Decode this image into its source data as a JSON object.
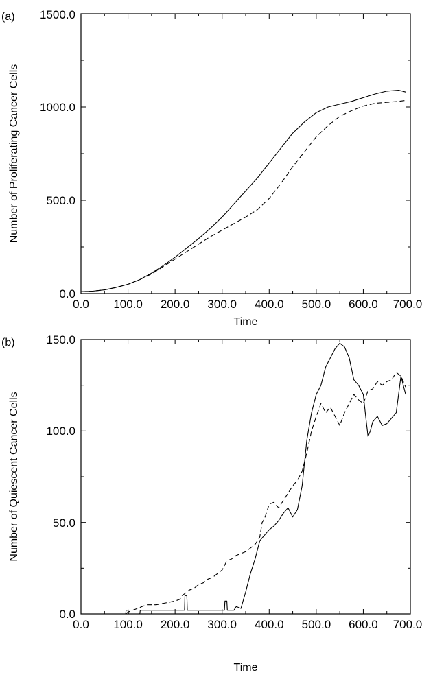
{
  "chart_data": [
    {
      "type": "line",
      "panel_label": "(a)",
      "title": "",
      "xlabel": "Time",
      "ylabel": "Number of Proliferating Cancer Cells",
      "xlim": [
        0,
        700
      ],
      "ylim": [
        0,
        1500
      ],
      "xticks": [
        "0.0",
        "100.0",
        "200.0",
        "300.0",
        "400.0",
        "500.0",
        "600.0",
        "700.0"
      ],
      "yticks": [
        "0.0",
        "500.0",
        "1000.0",
        "1500.0"
      ],
      "grid": false,
      "series": [
        {
          "style": "solid",
          "x": [
            0,
            25,
            50,
            75,
            100,
            125,
            150,
            175,
            200,
            225,
            250,
            275,
            300,
            325,
            350,
            375,
            400,
            425,
            450,
            475,
            500,
            525,
            550,
            575,
            600,
            625,
            650,
            675,
            690
          ],
          "y": [
            10,
            13,
            20,
            33,
            50,
            75,
            110,
            150,
            195,
            245,
            295,
            350,
            410,
            480,
            550,
            620,
            700,
            780,
            860,
            920,
            970,
            1000,
            1015,
            1030,
            1050,
            1070,
            1085,
            1090,
            1080
          ]
        },
        {
          "style": "dashed",
          "x": [
            0,
            25,
            50,
            75,
            100,
            125,
            150,
            175,
            200,
            225,
            250,
            275,
            300,
            325,
            350,
            375,
            400,
            425,
            450,
            475,
            500,
            525,
            550,
            575,
            600,
            625,
            650,
            675,
            690
          ],
          "y": [
            10,
            13,
            20,
            33,
            50,
            75,
            105,
            145,
            185,
            225,
            265,
            305,
            340,
            375,
            410,
            450,
            510,
            590,
            680,
            760,
            840,
            900,
            950,
            980,
            1005,
            1020,
            1025,
            1030,
            1035
          ]
        }
      ]
    },
    {
      "type": "line",
      "panel_label": "(b)",
      "title": "",
      "xlabel": "Time",
      "ylabel": "Number of Quiescent Cancer Cells",
      "xlim": [
        0,
        700
      ],
      "ylim": [
        0,
        150
      ],
      "xticks": [
        "0.0",
        "100.0",
        "200.0",
        "300.0",
        "400.0",
        "500.0",
        "600.0",
        "700.0"
      ],
      "yticks": [
        "0.0",
        "50.0",
        "100.0",
        "150.0"
      ],
      "grid": false,
      "series": [
        {
          "style": "solid",
          "x": [
            0,
            95,
            96,
            100,
            101,
            125,
            126,
            220,
            221,
            225,
            226,
            305,
            306,
            310,
            311,
            325,
            330,
            340,
            350,
            360,
            370,
            380,
            390,
            400,
            410,
            420,
            430,
            440,
            450,
            460,
            470,
            480,
            490,
            500,
            510,
            520,
            530,
            540,
            550,
            560,
            570,
            580,
            590,
            600,
            605,
            610,
            615,
            620,
            630,
            640,
            650,
            660,
            670,
            680,
            690
          ],
          "y": [
            0,
            0,
            2,
            2,
            0,
            0,
            2,
            2,
            10,
            10,
            2,
            2,
            7,
            7,
            2,
            2,
            4,
            3,
            12,
            22,
            30,
            40,
            43,
            46,
            48,
            51,
            55,
            58,
            53,
            57,
            70,
            95,
            110,
            120,
            125,
            135,
            140,
            145,
            148,
            146,
            140,
            128,
            125,
            120,
            108,
            97,
            100,
            105,
            108,
            103,
            104,
            107,
            110,
            130,
            120
          ]
        },
        {
          "style": "dashed",
          "x": [
            0,
            95,
            100,
            110,
            120,
            130,
            140,
            160,
            180,
            200,
            210,
            215,
            220,
            230,
            240,
            250,
            260,
            270,
            280,
            290,
            300,
            310,
            320,
            330,
            340,
            350,
            360,
            370,
            380,
            385,
            390,
            395,
            400,
            410,
            420,
            430,
            440,
            450,
            460,
            470,
            480,
            490,
            500,
            510,
            520,
            530,
            540,
            550,
            560,
            570,
            580,
            590,
            600,
            610,
            620,
            630,
            640,
            650,
            660,
            670,
            680,
            690
          ],
          "y": [
            0,
            0,
            1,
            2,
            3,
            4,
            5,
            5,
            6,
            7,
            8,
            10,
            11,
            13,
            14,
            16,
            17,
            19,
            20,
            22,
            24,
            29,
            30,
            32,
            33,
            34,
            36,
            38,
            42,
            50,
            52,
            56,
            60,
            61,
            58,
            62,
            66,
            70,
            73,
            78,
            88,
            100,
            108,
            115,
            110,
            113,
            108,
            103,
            110,
            115,
            120,
            117,
            115,
            122,
            123,
            127,
            125,
            127,
            128,
            132,
            130,
            124
          ]
        }
      ]
    }
  ]
}
